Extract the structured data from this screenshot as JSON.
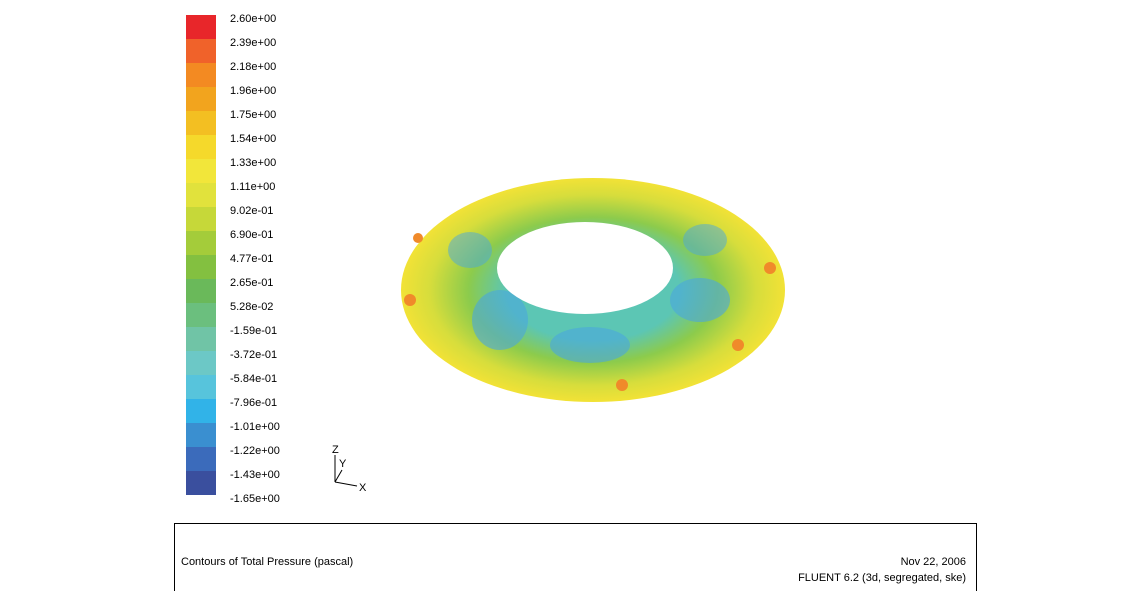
{
  "colorbar": {
    "labels": [
      "2.60e+00",
      "2.39e+00",
      "2.18e+00",
      "1.96e+00",
      "1.75e+00",
      "1.54e+00",
      "1.33e+00",
      "1.11e+00",
      "9.02e-01",
      "6.90e-01",
      "4.77e-01",
      "2.65e-01",
      "5.28e-02",
      "-1.59e-01",
      "-3.72e-01",
      "-5.84e-01",
      "-7.96e-01",
      "-1.01e+00",
      "-1.22e+00",
      "-1.43e+00",
      "-1.65e+00"
    ]
  },
  "axes": {
    "z": "Z",
    "y": "Y",
    "x": "X"
  },
  "caption": {
    "title": "Contours of Total Pressure (pascal)",
    "date": "Nov 22, 2006",
    "software": "FLUENT 6.2 (3d, segregated, ske)"
  }
}
